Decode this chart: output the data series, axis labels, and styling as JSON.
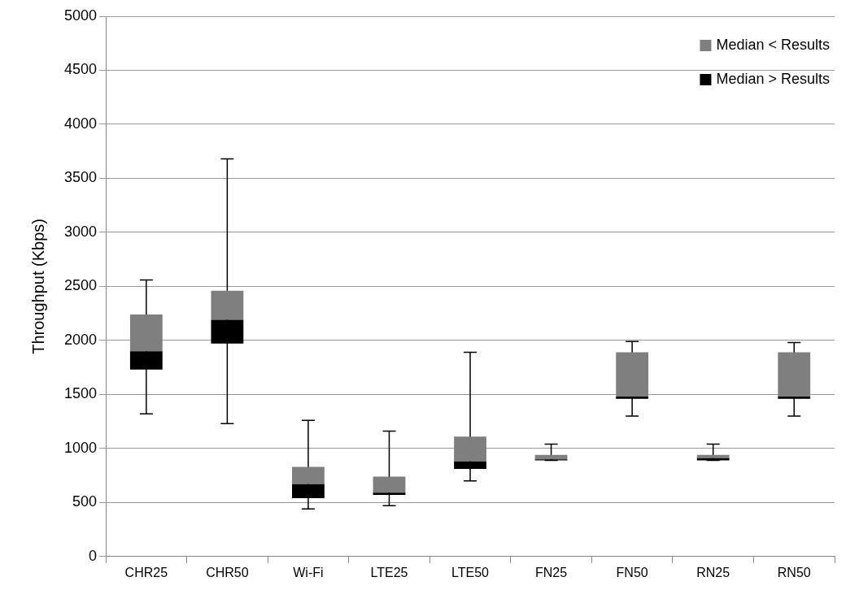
{
  "chart_data": {
    "type": "bar",
    "ylabel": "Throughput (Kbps)",
    "categories": [
      "CHR25",
      "CHR50",
      "Wi-Fi",
      "LTE25",
      "LTE50",
      "FN25",
      "FN50",
      "RN25",
      "RN50"
    ],
    "series": [
      {
        "name": "Median > Results",
        "color": "#000000",
        "base": [
          1730,
          1970,
          540,
          570,
          810,
          890,
          1460,
          890,
          1460
        ],
        "values": [
          170,
          220,
          130,
          20,
          70,
          10,
          20,
          20,
          20
        ]
      },
      {
        "name": "Median < Results",
        "color": "#7f7f7f",
        "base": [
          1900,
          2190,
          670,
          590,
          880,
          900,
          1480,
          910,
          1480
        ],
        "values": [
          340,
          270,
          160,
          150,
          230,
          40,
          410,
          30,
          410
        ],
        "errors": [
          [
            1320,
            2560
          ],
          [
            1230,
            3680
          ],
          [
            440,
            1260
          ],
          [
            470,
            1160
          ],
          [
            700,
            1890
          ],
          [
            890,
            1040
          ],
          [
            1300,
            1990
          ],
          [
            890,
            1040
          ],
          [
            1300,
            1980
          ]
        ]
      }
    ],
    "ylim": [
      0,
      5000
    ],
    "yticks": [
      0,
      500,
      1000,
      1500,
      2000,
      2500,
      3000,
      3500,
      4000,
      4500,
      5000
    ],
    "grid": "y",
    "legend": "top right"
  }
}
